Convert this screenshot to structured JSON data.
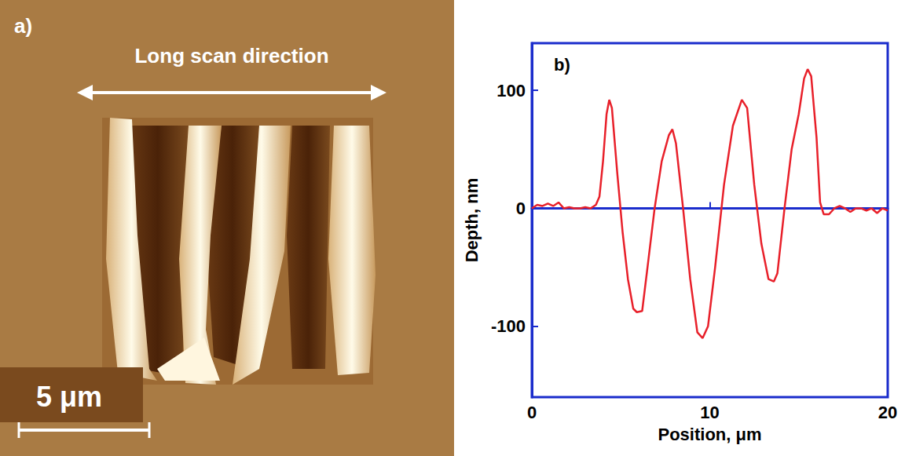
{
  "image_panel": {
    "label": "a)",
    "annotation": "Long scan direction",
    "scale_bar": "5 μm"
  },
  "chart_data": {
    "type": "line",
    "title": "b)",
    "x_label": "Position, μm",
    "y_label": "Depth, nm",
    "x": [
      0,
      0.3,
      0.6,
      0.9,
      1.2,
      1.5,
      1.8,
      2.1,
      2.4,
      2.7,
      3.0,
      3.3,
      3.6,
      3.8,
      4.0,
      4.2,
      4.35,
      4.5,
      4.8,
      5.1,
      5.4,
      5.7,
      5.9,
      6.2,
      6.5,
      6.9,
      7.3,
      7.7,
      7.9,
      8.1,
      8.5,
      8.9,
      9.3,
      9.6,
      9.9,
      10.3,
      10.8,
      11.3,
      11.8,
      12.1,
      12.5,
      12.9,
      13.3,
      13.6,
      13.8,
      14.2,
      14.6,
      15.0,
      15.3,
      15.5,
      15.7,
      16.0,
      16.2,
      16.4,
      16.7,
      17.0,
      17.3,
      17.6,
      17.9,
      18.2,
      18.5,
      18.8,
      19.1,
      19.4,
      19.7,
      20.0
    ],
    "series": [
      {
        "name": "Depth",
        "color": "#e8202a",
        "values": [
          0,
          3,
          2,
          4,
          2,
          5,
          0,
          1,
          0,
          0,
          1,
          0,
          3,
          10,
          40,
          80,
          92,
          85,
          30,
          -20,
          -60,
          -85,
          -88,
          -87,
          -50,
          0,
          40,
          62,
          67,
          55,
          0,
          -60,
          -105,
          -110,
          -100,
          -50,
          20,
          70,
          92,
          85,
          20,
          -30,
          -60,
          -62,
          -55,
          0,
          50,
          80,
          110,
          118,
          112,
          60,
          5,
          -5,
          -5,
          0,
          2,
          0,
          -3,
          0,
          0,
          -2,
          0,
          -4,
          0,
          -2
        ]
      }
    ],
    "xlim": [
      0,
      20
    ],
    "xticks": [
      0,
      10,
      20
    ],
    "ylim": [
      -160,
      140
    ],
    "yticks": [
      -100,
      0,
      100
    ],
    "grid": false
  }
}
